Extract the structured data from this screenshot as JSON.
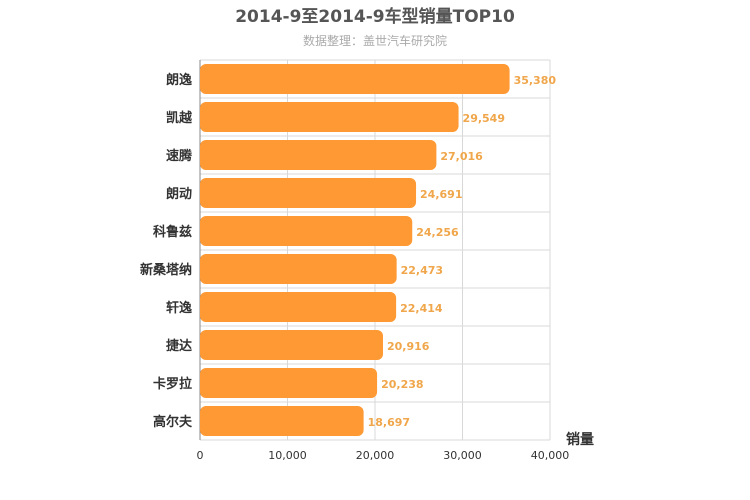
{
  "chart_data": {
    "type": "bar",
    "orientation": "horizontal",
    "title": "2014-9至2014-9车型销量TOP10",
    "subtitle": "数据整理：盖世汽车研究院",
    "categories": [
      "朗逸",
      "凯越",
      "速腾",
      "朗动",
      "科鲁兹",
      "新桑塔纳",
      "轩逸",
      "捷达",
      "卡罗拉",
      "高尔夫"
    ],
    "values": [
      35380,
      29549,
      27016,
      24691,
      24256,
      22473,
      22414,
      20916,
      20238,
      18697
    ],
    "value_labels": [
      "35,380",
      "29,549",
      "27,016",
      "24,691",
      "24,256",
      "22,473",
      "22,414",
      "20,916",
      "20,238",
      "18,697"
    ],
    "xlabel": "销量",
    "ylabel": "",
    "xlim": [
      0,
      40000
    ],
    "x_ticks": [
      "0",
      "10,000",
      "20,000",
      "30,000",
      "40,000"
    ],
    "grid": true,
    "bar_color": "#ff9933",
    "label_color": "#f0a64a"
  }
}
